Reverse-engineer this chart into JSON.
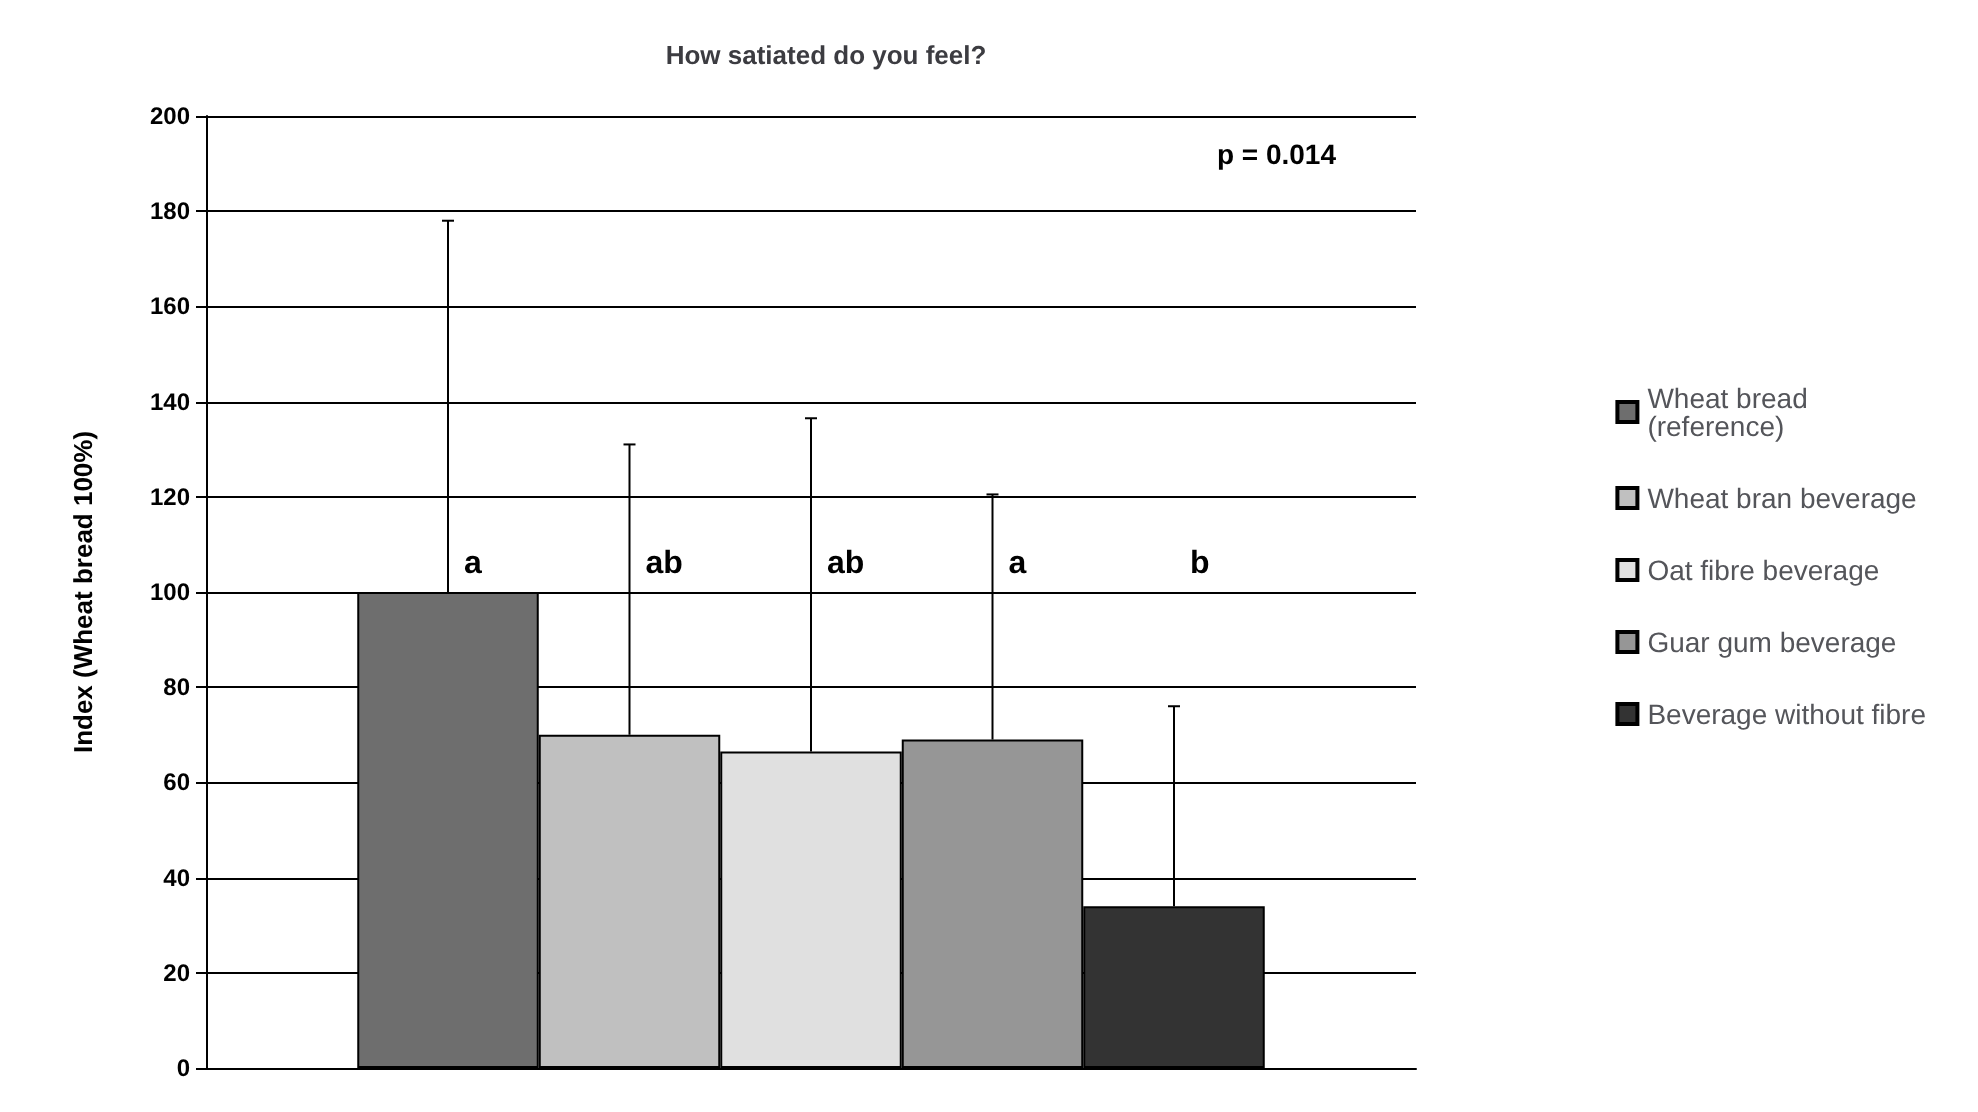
{
  "chart_data": {
    "type": "bar",
    "title": "How satiated do you feel?",
    "ylabel": "Index (Wheat bread 100%)",
    "categories": [
      null
    ],
    "series": [
      {
        "name": "Wheat bread (reference)",
        "color": "#6e6e6e",
        "values": [
          100
        ],
        "errors": [
          [
            100,
            178
          ]
        ]
      },
      {
        "name": "Wheat bran beverage",
        "color": "#c0c0c0",
        "values": [
          70
        ],
        "errors": [
          [
            70,
            131
          ]
        ]
      },
      {
        "name": "Oat fibre beverage",
        "color": "#e0e0e0",
        "values": [
          66.5
        ],
        "errors": [
          [
            66.5,
            136.5
          ]
        ]
      },
      {
        "name": "Guar gum beverage",
        "color": "#969696",
        "values": [
          69
        ],
        "errors": [
          [
            69,
            120.5
          ]
        ]
      },
      {
        "name": "Beverage without fibre",
        "color": "#333333",
        "values": [
          34
        ],
        "errors": [
          [
            34,
            76
          ]
        ]
      }
    ],
    "annotations": [
      "a",
      "ab",
      "ab",
      "a",
      "b",
      "p = 0.014"
    ],
    "ylim": [
      0,
      200
    ],
    "yticks": [
      0,
      20,
      40,
      60,
      80,
      100,
      120,
      140,
      160,
      180,
      200
    ],
    "grid": "y",
    "legend": "right"
  }
}
